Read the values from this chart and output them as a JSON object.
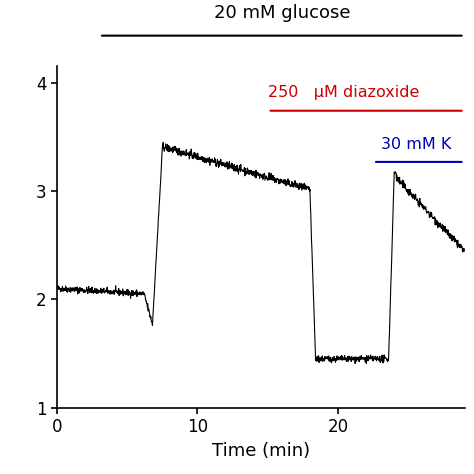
{
  "title_glucose": "20 mM glucose",
  "label_diazoxide": "250   μM diazoxide",
  "label_k": "30 mM K",
  "xlabel": "Time (min)",
  "xlim": [
    0,
    29
  ],
  "ylim": [
    1,
    4.15
  ],
  "yticks": [
    1,
    2,
    3,
    4
  ],
  "xticks": [
    0,
    10,
    20
  ],
  "background_color": "#ffffff",
  "line_color": "#000000",
  "glucose_bar_color": "#000000",
  "diazoxide_bar_color": "#cc0000",
  "k_bar_color": "#0000bb",
  "glucose_text_color": "#000000",
  "diazoxide_text_color": "#cc0000",
  "k_text_color": "#0000bb",
  "figsize": [
    4.74,
    4.74
  ],
  "dpi": 100
}
